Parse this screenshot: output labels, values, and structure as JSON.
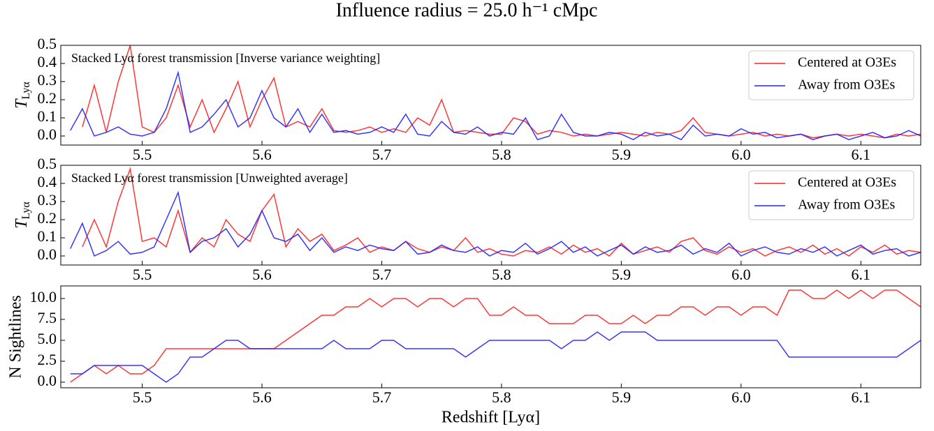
{
  "title": "Influence radius = 25.0 h⁻¹ cMpc",
  "chart_data": [
    {
      "type": "line",
      "annotation": "Stacked Lyα forest transmission [Inverse variance weighting]",
      "ylabel": "T",
      "ylabel_sub": "Lyα",
      "legend": "upper right",
      "xlim": [
        5.432,
        6.15
      ],
      "ylim": [
        -0.05,
        0.5
      ],
      "xticks": [
        5.5,
        5.6,
        5.7,
        5.8,
        5.9,
        {
          "value": 6,
          "label": "6.0"
        },
        6.1
      ],
      "yticks": [
        {
          "value": 0,
          "label": "0.0"
        },
        0.1,
        0.2,
        0.3,
        0.4,
        0.5
      ],
      "x": [
        5.44,
        5.45,
        5.46,
        5.47,
        5.48,
        5.49,
        5.5,
        5.51,
        5.52,
        5.53,
        5.54,
        5.55,
        5.56,
        5.57,
        5.58,
        5.59,
        5.6,
        5.61,
        5.62,
        5.63,
        5.64,
        5.65,
        5.66,
        5.67,
        5.68,
        5.69,
        5.7,
        5.71,
        5.72,
        5.73,
        5.74,
        5.75,
        5.76,
        5.77,
        5.78,
        5.79,
        5.8,
        5.81,
        5.82,
        5.83,
        5.84,
        5.85,
        5.86,
        5.87,
        5.88,
        5.89,
        5.9,
        5.91,
        5.92,
        5.93,
        5.94,
        5.95,
        5.96,
        5.97,
        5.98,
        5.99,
        6.0,
        6.01,
        6.02,
        6.03,
        6.04,
        6.05,
        6.06,
        6.07,
        6.08,
        6.09,
        6.1,
        6.11,
        6.12,
        6.13,
        6.14,
        6.15
      ],
      "series": [
        {
          "name": "Centered at O3Es",
          "color": "#ff2020",
          "values": [
            null,
            0.05,
            0.28,
            0.02,
            0.3,
            0.5,
            0.05,
            0.02,
            0.1,
            0.28,
            0.05,
            0.2,
            0.02,
            0.15,
            0.3,
            0.05,
            0.2,
            0.32,
            0.05,
            0.08,
            0.05,
            0.15,
            0.03,
            0.02,
            0.03,
            0.05,
            0.02,
            0.04,
            0.02,
            0.1,
            0.06,
            0.2,
            0.02,
            0.03,
            0.02,
            0.01,
            0.01,
            0.1,
            0.08,
            0.01,
            0.03,
            0.02,
            0.0,
            0.01,
            0.0,
            0.01,
            0.02,
            0.01,
            0.0,
            0.02,
            0.01,
            0.03,
            0.1,
            0.02,
            0.01,
            0.0,
            0.01,
            0.02,
            0.0,
            0.01,
            0.0,
            0.01,
            -0.01,
            0.0,
            0.01,
            0.0,
            0.01,
            0.0,
            -0.01,
            0.01,
            0.0,
            0.01
          ]
        },
        {
          "name": "Away from O3Es",
          "color": "#2020ff",
          "values": [
            0.03,
            0.15,
            0.0,
            0.02,
            0.05,
            0.01,
            0.0,
            0.02,
            0.15,
            0.35,
            0.02,
            0.05,
            0.12,
            0.2,
            0.05,
            0.1,
            0.25,
            0.1,
            0.05,
            0.15,
            0.02,
            0.12,
            0.02,
            0.03,
            0.01,
            0.02,
            0.05,
            0.02,
            0.12,
            0.01,
            0.0,
            0.08,
            0.02,
            0.01,
            0.05,
            0.0,
            0.02,
            0.01,
            0.1,
            -0.02,
            0.0,
            0.12,
            0.02,
            0.0,
            0.0,
            0.02,
            0.01,
            -0.02,
            0.02,
            0.0,
            0.01,
            -0.02,
            0.06,
            0.0,
            0.01,
            0.0,
            0.04,
            0.01,
            0.02,
            -0.01,
            0.0,
            0.01,
            -0.02,
            0.0,
            0.01,
            -0.02,
            0.0,
            0.02,
            -0.01,
            0.0,
            0.03,
            0.0
          ]
        }
      ]
    },
    {
      "type": "line",
      "annotation": "Stacked Lyα forest transmission [Unweighted average]",
      "ylabel": "T",
      "ylabel_sub": "Lyα",
      "legend": "upper right",
      "xlim": [
        5.432,
        6.15
      ],
      "ylim": [
        -0.05,
        0.5
      ],
      "xticks": [
        5.5,
        5.6,
        5.7,
        5.8,
        5.9,
        {
          "value": 6,
          "label": "6.0"
        },
        6.1
      ],
      "yticks": [
        {
          "value": 0,
          "label": "0.0"
        },
        0.1,
        0.2,
        0.3,
        0.4,
        0.5
      ],
      "x": [
        5.44,
        5.45,
        5.46,
        5.47,
        5.48,
        5.49,
        5.5,
        5.51,
        5.52,
        5.53,
        5.54,
        5.55,
        5.56,
        5.57,
        5.58,
        5.59,
        5.6,
        5.61,
        5.62,
        5.63,
        5.64,
        5.65,
        5.66,
        5.67,
        5.68,
        5.69,
        5.7,
        5.71,
        5.72,
        5.73,
        5.74,
        5.75,
        5.76,
        5.77,
        5.78,
        5.79,
        5.8,
        5.81,
        5.82,
        5.83,
        5.84,
        5.85,
        5.86,
        5.87,
        5.88,
        5.89,
        5.9,
        5.91,
        5.92,
        5.93,
        5.94,
        5.95,
        5.96,
        5.97,
        5.98,
        5.99,
        6.0,
        6.01,
        6.02,
        6.03,
        6.04,
        6.05,
        6.06,
        6.07,
        6.08,
        6.09,
        6.1,
        6.11,
        6.12,
        6.13,
        6.14,
        6.15
      ],
      "series": [
        {
          "name": "Centered at O3Es",
          "color": "#ff2020",
          "values": [
            null,
            0.05,
            0.2,
            0.05,
            0.3,
            0.48,
            0.08,
            0.1,
            0.05,
            0.25,
            0.02,
            0.1,
            0.05,
            0.2,
            0.12,
            0.08,
            0.25,
            0.34,
            0.05,
            0.15,
            0.08,
            0.12,
            0.03,
            0.06,
            0.1,
            0.02,
            0.05,
            0.03,
            0.08,
            0.04,
            0.02,
            0.05,
            0.03,
            0.1,
            0.02,
            0.04,
            0.01,
            0.0,
            0.03,
            0.02,
            0.05,
            0.01,
            0.06,
            0.02,
            0.04,
            0.0,
            0.07,
            0.01,
            0.03,
            0.05,
            0.02,
            0.08,
            0.1,
            0.03,
            0.01,
            0.05,
            0.02,
            0.04,
            0.0,
            0.03,
            0.05,
            0.02,
            0.06,
            0.01,
            0.04,
            0.0,
            0.05,
            0.02,
            0.06,
            0.01,
            0.03,
            0.02
          ]
        },
        {
          "name": "Away from O3Es",
          "color": "#2020ff",
          "values": [
            0.04,
            0.18,
            0.0,
            0.03,
            0.08,
            0.01,
            0.02,
            0.05,
            0.2,
            0.35,
            0.02,
            0.08,
            0.1,
            0.15,
            0.05,
            0.12,
            0.25,
            0.1,
            0.08,
            0.12,
            0.03,
            0.1,
            0.02,
            0.05,
            0.03,
            0.06,
            0.04,
            0.03,
            0.08,
            0.01,
            0.02,
            0.06,
            0.03,
            0.02,
            0.05,
            0.0,
            0.03,
            0.02,
            0.07,
            0.01,
            0.04,
            0.08,
            0.02,
            0.05,
            0.0,
            0.03,
            0.06,
            0.01,
            0.05,
            0.02,
            0.03,
            0.06,
            0.01,
            0.04,
            0.02,
            0.07,
            0.0,
            0.03,
            0.05,
            0.02,
            0.01,
            0.04,
            0.02,
            0.05,
            0.0,
            0.03,
            0.06,
            0.01,
            0.03,
            0.04,
            0.0,
            0.02
          ]
        }
      ]
    },
    {
      "type": "line",
      "ylabel": "N Sightlines",
      "xlabel": "Redshift [Lyα]",
      "xlim": [
        5.432,
        6.15
      ],
      "ylim": [
        -0.67,
        11.5
      ],
      "xticks": [
        5.5,
        5.6,
        5.7,
        5.8,
        5.9,
        {
          "value": 6,
          "label": "6.0"
        },
        6.1
      ],
      "yticks": [
        {
          "value": 0,
          "label": "0.0"
        },
        2.5,
        {
          "value": 5,
          "label": "5.0"
        },
        7.5,
        {
          "value": 10,
          "label": "10.0"
        }
      ],
      "x": [
        5.44,
        5.45,
        5.46,
        5.47,
        5.48,
        5.49,
        5.5,
        5.51,
        5.52,
        5.53,
        5.54,
        5.55,
        5.56,
        5.57,
        5.58,
        5.59,
        5.6,
        5.61,
        5.62,
        5.63,
        5.64,
        5.65,
        5.66,
        5.67,
        5.68,
        5.69,
        5.7,
        5.71,
        5.72,
        5.73,
        5.74,
        5.75,
        5.76,
        5.77,
        5.78,
        5.79,
        5.8,
        5.81,
        5.82,
        5.83,
        5.84,
        5.85,
        5.86,
        5.87,
        5.88,
        5.89,
        5.9,
        5.91,
        5.92,
        5.93,
        5.94,
        5.95,
        5.96,
        5.97,
        5.98,
        5.99,
        6.0,
        6.01,
        6.02,
        6.03,
        6.04,
        6.05,
        6.06,
        6.07,
        6.08,
        6.09,
        6.1,
        6.11,
        6.12,
        6.13,
        6.14,
        6.15
      ],
      "series": [
        {
          "name": "Centered at O3Es",
          "color": "#ff2020",
          "values": [
            0,
            1,
            2,
            1,
            2,
            1,
            1,
            2,
            4,
            4,
            4,
            4,
            4,
            4,
            4,
            4,
            4,
            4,
            5,
            6,
            7,
            8,
            8,
            9,
            9,
            10,
            9,
            10,
            10,
            9,
            10,
            10,
            9,
            10,
            10,
            8,
            8,
            9,
            8,
            8,
            7,
            7,
            7,
            8,
            8,
            7,
            7,
            8,
            7,
            8,
            8,
            9,
            9,
            8,
            9,
            9,
            8,
            9,
            9,
            8,
            11,
            11,
            10,
            10,
            11,
            10,
            11,
            10,
            11,
            11,
            10,
            9
          ]
        },
        {
          "name": "Away from O3Es",
          "color": "#2020ff",
          "values": [
            1,
            1,
            2,
            2,
            2,
            2,
            2,
            1,
            0,
            1,
            3,
            3,
            4,
            5,
            5,
            4,
            4,
            4,
            4,
            4,
            4,
            4,
            5,
            4,
            4,
            4,
            5,
            5,
            4,
            4,
            4,
            4,
            4,
            3,
            4,
            5,
            5,
            5,
            5,
            5,
            5,
            4,
            5,
            5,
            6,
            5,
            6,
            6,
            6,
            5,
            5,
            5,
            5,
            5,
            5,
            5,
            5,
            5,
            5,
            5,
            3,
            3,
            3,
            3,
            3,
            3,
            3,
            3,
            3,
            3,
            4,
            5
          ]
        }
      ]
    }
  ]
}
